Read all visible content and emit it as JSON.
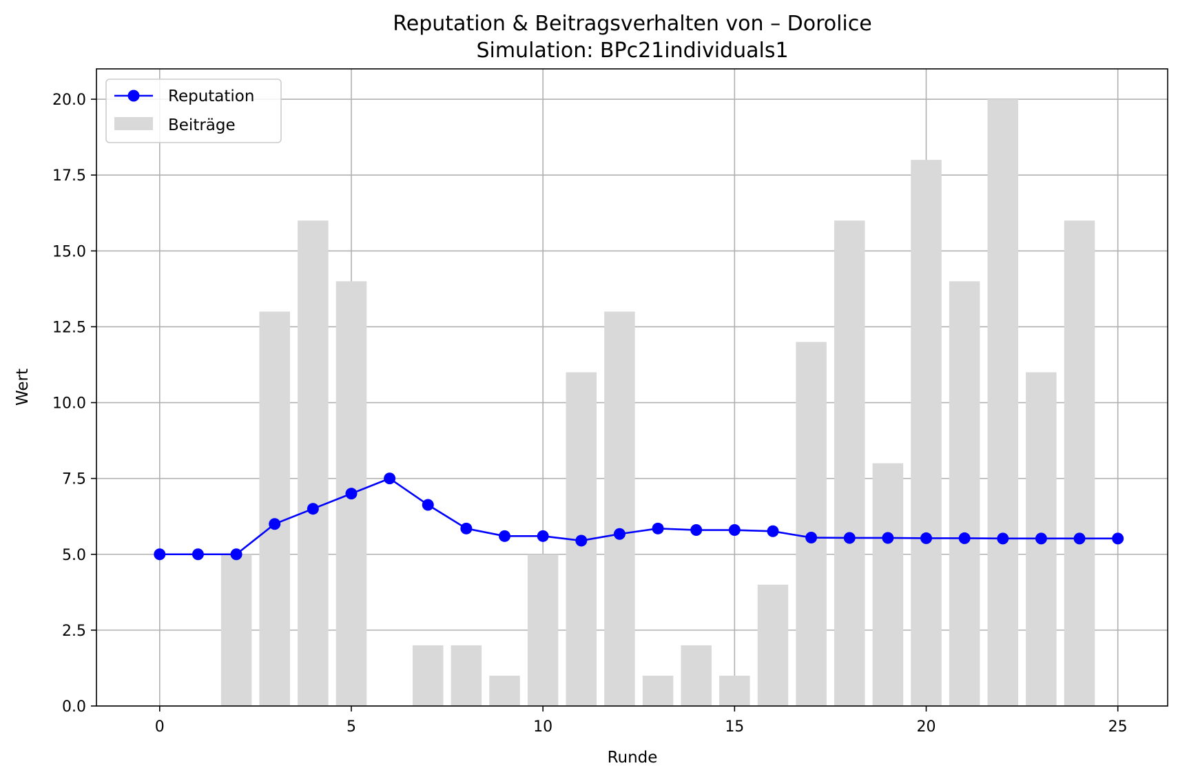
{
  "chart_data": {
    "type": "bar",
    "title": "Reputation & Beitragsverhalten von – Dorolice",
    "subtitle": "Simulation: BPc21individuals1",
    "xlabel": "Runde",
    "ylabel": "Wert",
    "xlim": [
      -1.65,
      26.3
    ],
    "ylim": [
      0,
      21
    ],
    "x_ticks": [
      0,
      5,
      10,
      15,
      20,
      25
    ],
    "x_tick_labels": [
      "0",
      "5",
      "10",
      "15",
      "20",
      "25"
    ],
    "y_ticks": [
      0,
      2.5,
      5,
      7.5,
      10,
      12.5,
      15,
      17.5,
      20
    ],
    "y_tick_labels": [
      "0.0",
      "2.5",
      "5.0",
      "7.5",
      "10.0",
      "12.5",
      "15.0",
      "17.5",
      "20.0"
    ],
    "grid": true,
    "legend_position": "upper-left",
    "x": [
      0,
      1,
      2,
      3,
      4,
      5,
      6,
      7,
      8,
      9,
      10,
      11,
      12,
      13,
      14,
      15,
      16,
      17,
      18,
      19,
      20,
      21,
      22,
      23,
      24,
      25
    ],
    "series": [
      {
        "name": "Reputation",
        "kind": "line",
        "marker": "circle",
        "color": "#0000ff",
        "values": [
          5.0,
          5.0,
          5.0,
          6.0,
          6.5,
          7.0,
          7.5,
          6.63,
          5.85,
          5.6,
          5.6,
          5.45,
          5.67,
          5.85,
          5.8,
          5.8,
          5.76,
          5.55,
          5.54,
          5.54,
          5.53,
          5.53,
          5.52,
          5.52,
          5.52,
          5.52
        ]
      },
      {
        "name": "Beiträge",
        "kind": "bar",
        "color": "#d9d9d9",
        "values": [
          0,
          0,
          5,
          13,
          16,
          14,
          0,
          2,
          2,
          1,
          5,
          11,
          13,
          1,
          2,
          1,
          4,
          12,
          16,
          8,
          18,
          14,
          20,
          11,
          16,
          0
        ]
      }
    ]
  }
}
